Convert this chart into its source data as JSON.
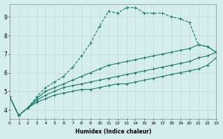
{
  "xlabel": "Humidex (Indice chaleur)",
  "bg_color": "#d4eeee",
  "line_color": "#1a7a6e",
  "grid_color": "#c8dada",
  "xlim": [
    0,
    23
  ],
  "ylim": [
    3.5,
    9.7
  ],
  "yticks": [
    4,
    5,
    6,
    7,
    8,
    9
  ],
  "xticks": [
    0,
    1,
    2,
    3,
    4,
    5,
    6,
    7,
    8,
    9,
    10,
    11,
    12,
    13,
    14,
    15,
    16,
    17,
    18,
    19,
    20,
    21,
    22,
    23
  ],
  "series": [
    {
      "x": [
        0,
        1,
        2,
        3,
        4,
        5,
        6,
        7,
        8,
        9,
        10,
        11,
        12,
        13,
        14,
        15,
        16,
        17,
        18,
        19,
        20,
        21,
        22,
        23
      ],
      "y": [
        4.7,
        3.7,
        4.1,
        4.7,
        5.2,
        5.5,
        5.8,
        6.3,
        6.9,
        7.6,
        8.5,
        9.3,
        9.2,
        9.5,
        9.5,
        9.2,
        9.2,
        9.2,
        9.0,
        8.9,
        8.7,
        7.5,
        7.4,
        7.1
      ],
      "linestyle": "--",
      "marker": "+"
    },
    {
      "x": [
        0,
        1,
        2,
        3,
        4,
        5,
        6,
        7,
        8,
        9,
        10,
        11,
        12,
        13,
        14,
        15,
        16,
        17,
        18,
        19,
        20,
        21,
        22,
        23
      ],
      "y": [
        4.7,
        3.7,
        4.1,
        4.6,
        5.0,
        5.2,
        5.4,
        5.6,
        5.8,
        6.0,
        6.2,
        6.4,
        6.5,
        6.6,
        6.7,
        6.8,
        6.9,
        7.0,
        7.1,
        7.2,
        7.3,
        7.5,
        7.4,
        7.1
      ],
      "linestyle": "-",
      "marker": "+"
    },
    {
      "x": [
        0,
        1,
        2,
        3,
        4,
        5,
        6,
        7,
        8,
        9,
        10,
        11,
        12,
        13,
        14,
        15,
        16,
        17,
        18,
        19,
        20,
        21,
        22,
        23
      ],
      "y": [
        4.7,
        3.7,
        4.1,
        4.5,
        4.8,
        5.0,
        5.2,
        5.3,
        5.4,
        5.5,
        5.6,
        5.7,
        5.8,
        5.9,
        6.0,
        6.1,
        6.2,
        6.3,
        6.4,
        6.5,
        6.6,
        6.8,
        6.9,
        7.1
      ],
      "linestyle": "-",
      "marker": "+"
    },
    {
      "x": [
        0,
        1,
        2,
        3,
        4,
        5,
        6,
        7,
        8,
        9,
        10,
        11,
        12,
        13,
        14,
        15,
        16,
        17,
        18,
        19,
        20,
        21,
        22,
        23
      ],
      "y": [
        4.7,
        3.7,
        4.1,
        4.4,
        4.6,
        4.8,
        4.9,
        5.0,
        5.1,
        5.1,
        5.2,
        5.3,
        5.4,
        5.4,
        5.5,
        5.6,
        5.7,
        5.8,
        5.9,
        6.0,
        6.1,
        6.2,
        6.4,
        6.8
      ],
      "linestyle": "-",
      "marker": "+"
    }
  ]
}
